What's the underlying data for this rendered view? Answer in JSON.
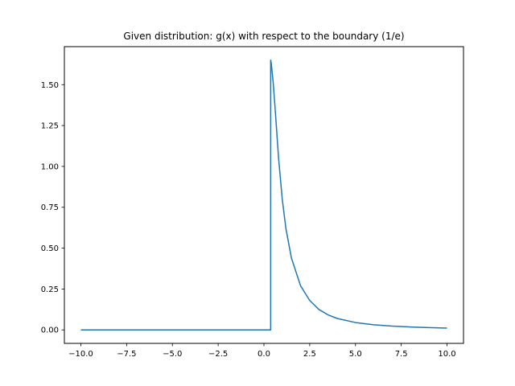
{
  "chart_data": {
    "type": "line",
    "title": "Given distribution: g(x) with respect to the boundary (1/e)",
    "xlabel": "",
    "ylabel": "",
    "xlim": [
      -10.9,
      10.9
    ],
    "ylim": [
      -0.0825,
      1.7325
    ],
    "grid": false,
    "x_ticks": [
      -10,
      -7.5,
      -5,
      -2.5,
      0,
      2.5,
      5,
      7.5,
      10
    ],
    "x_tick_labels": [
      "−10.0",
      "−7.5",
      "−5.0",
      "−2.5",
      "0.0",
      "2.5",
      "5.0",
      "7.5",
      "10.0"
    ],
    "y_ticks": [
      0,
      0.25,
      0.5,
      0.75,
      1.0,
      1.25,
      1.5
    ],
    "y_tick_labels": [
      "0.00",
      "0.25",
      "0.50",
      "0.75",
      "1.00",
      "1.25",
      "1.50"
    ],
    "series": [
      {
        "color": "#1f77b4",
        "x": [
          -10,
          0.368,
          0.368,
          0.4,
          0.5,
          0.6,
          0.7,
          0.8,
          1.0,
          1.2,
          1.5,
          2.0,
          2.5,
          3.0,
          3.5,
          4.0,
          5.0,
          6.0,
          7.0,
          8.0,
          9.0,
          10.0
        ],
        "y": [
          0,
          0,
          1.65,
          1.63,
          1.52,
          1.37,
          1.21,
          1.05,
          0.8,
          0.62,
          0.44,
          0.27,
          0.18,
          0.125,
          0.092,
          0.07,
          0.045,
          0.031,
          0.023,
          0.018,
          0.014,
          0.011
        ]
      }
    ]
  }
}
